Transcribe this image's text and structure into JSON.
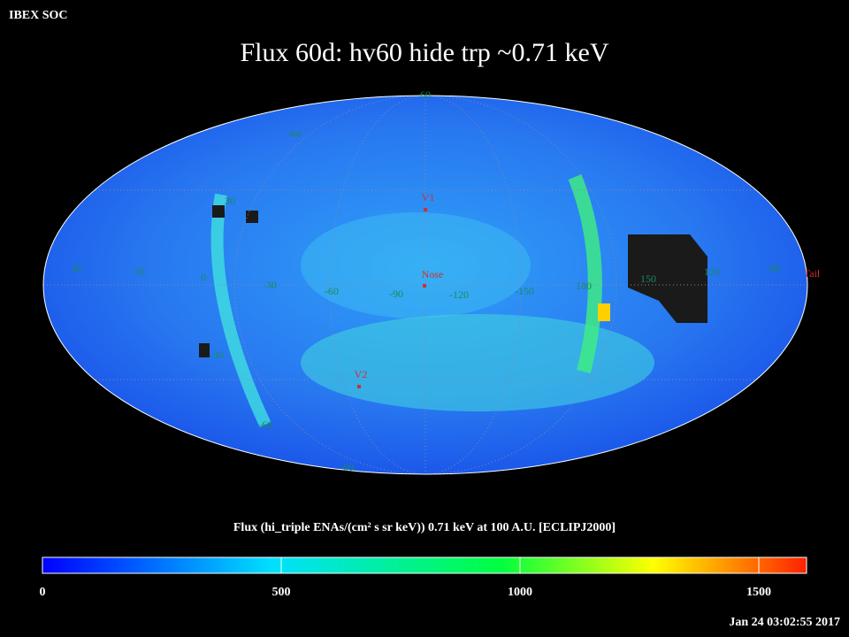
{
  "header": {
    "label": "IBEX SOC",
    "title": "Flux   60d: hv60 hide trp ~0.71 keV",
    "timestamp": "Jan 24 03:02:55 2017"
  },
  "map": {
    "grid_labels": [
      "60",
      "-60",
      "30",
      "30",
      "30",
      "0",
      "-30",
      "-60",
      "-90",
      "-120",
      "-150",
      "180",
      "150",
      "120",
      "90",
      "-30",
      "-60",
      "-60"
    ],
    "markers": [
      "V1",
      "Nose",
      "V2",
      "Tail"
    ]
  },
  "colorbar": {
    "title": "Flux (hi_triple ENAs/(cm² s sr keV))  0.71 keV at 100 A.U. [ECLIPJ2000]",
    "lim": [
      0,
      1600
    ],
    "ticks": [
      0,
      500,
      1000,
      1500
    ]
  }
}
